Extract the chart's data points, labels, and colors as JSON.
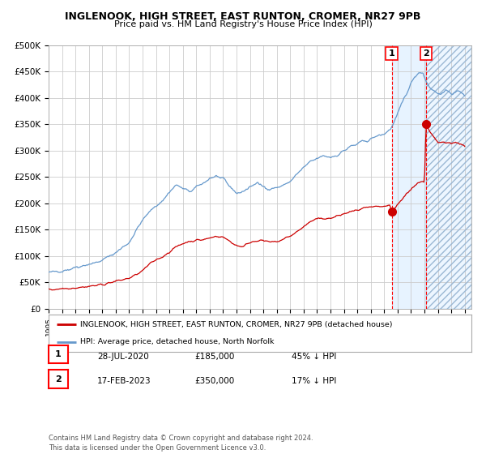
{
  "title1": "INGLENOOK, HIGH STREET, EAST RUNTON, CROMER, NR27 9PB",
  "title2": "Price paid vs. HM Land Registry's House Price Index (HPI)",
  "legend_red": "INGLENOOK, HIGH STREET, EAST RUNTON, CROMER, NR27 9PB (detached house)",
  "legend_blue": "HPI: Average price, detached house, North Norfolk",
  "event1_date": "28-JUL-2020",
  "event1_price": "£185,000",
  "event1_hpi": "45% ↓ HPI",
  "event2_date": "17-FEB-2023",
  "event2_price": "£350,000",
  "event2_hpi": "17% ↓ HPI",
  "footer": "Contains HM Land Registry data © Crown copyright and database right 2024.\nThis data is licensed under the Open Government Licence v3.0.",
  "ylim": [
    0,
    500000
  ],
  "yticks": [
    0,
    50000,
    100000,
    150000,
    200000,
    250000,
    300000,
    350000,
    400000,
    450000,
    500000
  ],
  "xlim_start": 1995.0,
  "xlim_end": 2026.5,
  "event1_x": 2020.57,
  "event2_x": 2023.12,
  "background_color": "#ffffff",
  "plot_bg_color": "#ffffff",
  "grid_color": "#cccccc",
  "blue_color": "#6699cc",
  "red_color": "#cc0000",
  "event_fill_color": "#ddeeff"
}
